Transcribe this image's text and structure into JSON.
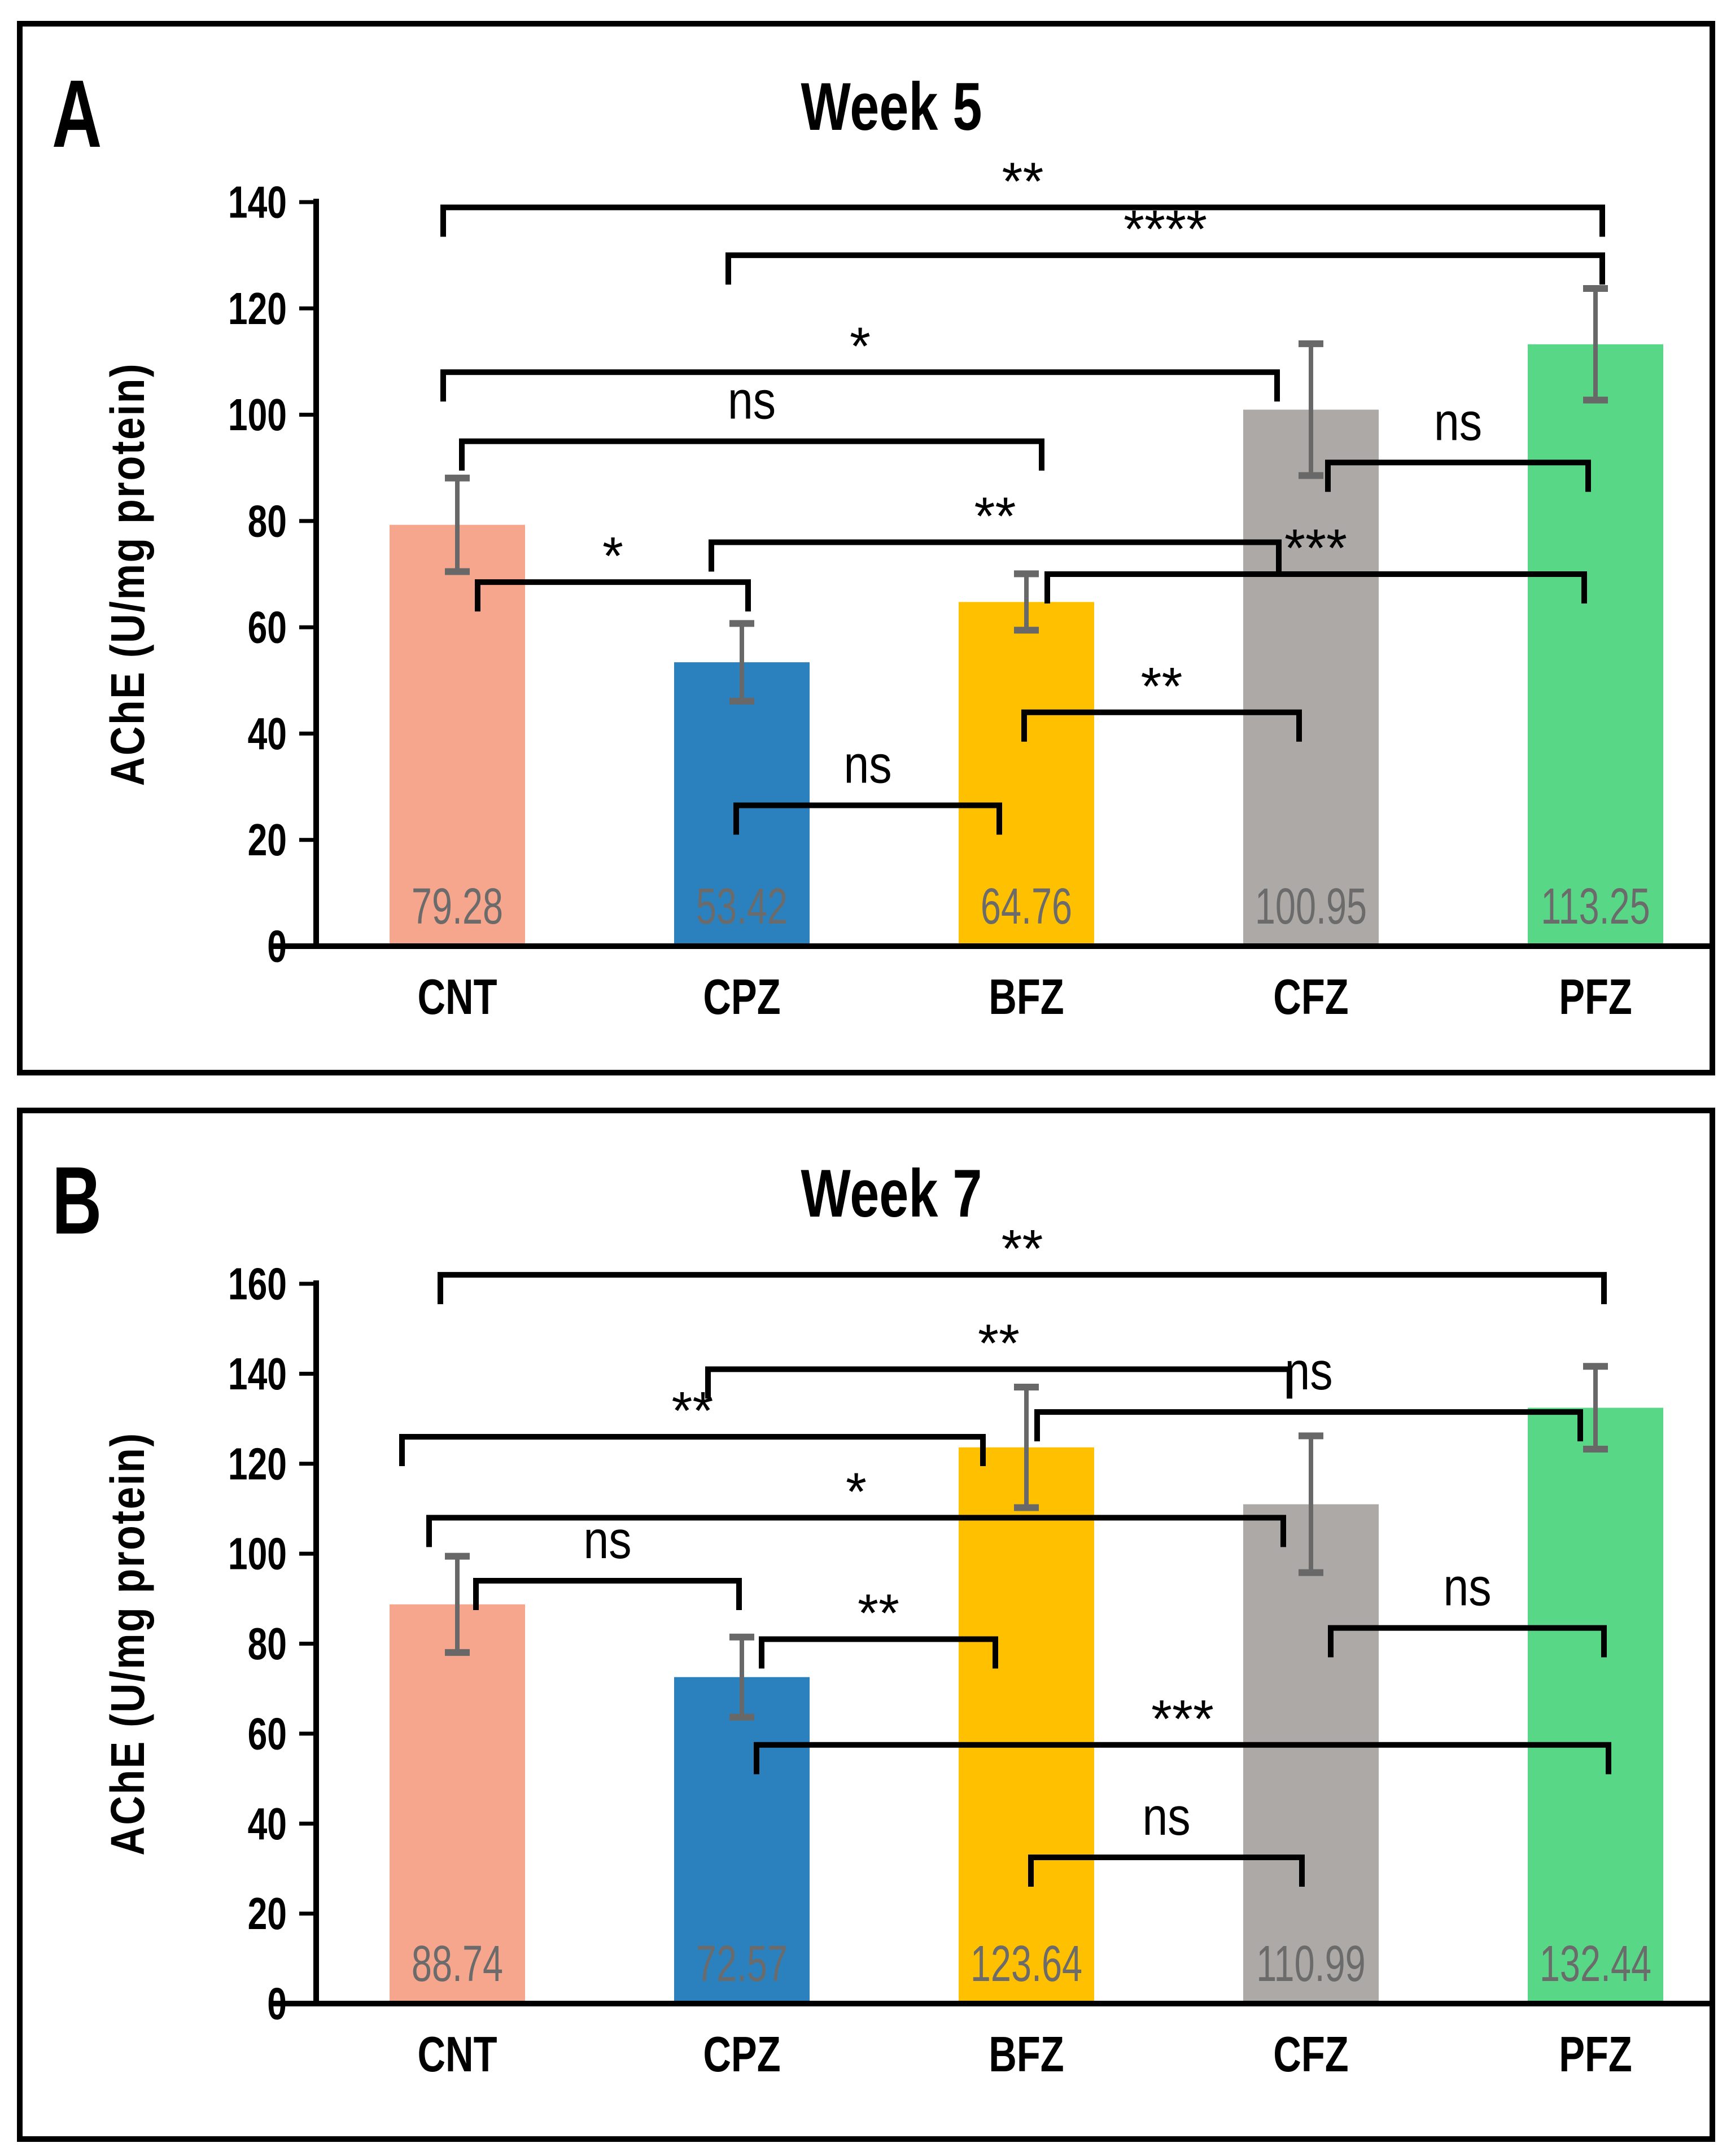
{
  "figure": {
    "description": "Two-panel bar chart figure comparing AChE activity across treatment groups",
    "background": "#ffffff",
    "frame_color": "#000000"
  },
  "chart_data": [
    {
      "type": "bar",
      "panel_letter": "A",
      "title": "Week 5",
      "xlabel": "",
      "ylabel": "AChE (U/mg protein)",
      "ylim": [
        0,
        140
      ],
      "ytick_step": 20,
      "yticks": [
        0,
        20,
        40,
        60,
        80,
        100,
        120,
        140
      ],
      "grid": false,
      "legend": "none",
      "categories": [
        "CNT",
        "CPZ",
        "BFZ",
        "CFZ",
        "PFZ"
      ],
      "values": [
        79.28,
        53.42,
        64.76,
        100.95,
        113.25
      ],
      "value_labels": [
        "79.28",
        "53.42",
        "64.76",
        "100.95",
        "113.25"
      ],
      "errors": [
        8.8,
        7.3,
        5.3,
        12.4,
        10.5
      ],
      "bar_colors": [
        "#F6A68C",
        "#2B81BE",
        "#FFC000",
        "#ADA9A6",
        "#58D886"
      ],
      "error_bar_color": "#686868",
      "value_label_color": "#6b6b6b",
      "significance_brackets": [
        {
          "from": "CNT",
          "to": "PFZ",
          "label": "**",
          "y": 139,
          "dx1": -25,
          "dx2": 12
        },
        {
          "from": "CPZ",
          "to": "PFZ",
          "label": "****",
          "y": 130,
          "dx1": -24,
          "dx2": 12
        },
        {
          "from": "CNT",
          "to": "CFZ",
          "label": "*",
          "y": 108,
          "dx1": -25,
          "dx2": -60
        },
        {
          "from": "CNT",
          "to": "BFZ",
          "label": "ns",
          "y": 95,
          "dx1": 8,
          "dx2": 27
        },
        {
          "from": "CPZ",
          "to": "CFZ",
          "label": "**",
          "y": 76,
          "dx1": -54,
          "dx2": -57
        },
        {
          "from": "CNT",
          "to": "CPZ",
          "label": "*",
          "y": 68.5,
          "dx1": 36,
          "dx2": 11
        },
        {
          "from": "BFZ",
          "to": "PFZ",
          "label": "***",
          "y": 70,
          "dx1": 37,
          "dx2": -20
        },
        {
          "from": "CFZ",
          "to": "PFZ",
          "label": "ns",
          "y": 91,
          "dx1": 30,
          "dx2": -13
        },
        {
          "from": "BFZ",
          "to": "CFZ",
          "label": "**",
          "y": 44,
          "dx1": -4,
          "dx2": -21
        },
        {
          "from": "CPZ",
          "to": "BFZ",
          "label": "ns",
          "y": 26.5,
          "dx1": -10,
          "dx2": -48
        }
      ]
    },
    {
      "type": "bar",
      "panel_letter": "B",
      "title": "Week 7",
      "xlabel": "",
      "ylabel": "AChE (U/mg protein)",
      "ylim": [
        0,
        160
      ],
      "ytick_step": 20,
      "yticks": [
        0,
        20,
        40,
        60,
        80,
        100,
        120,
        140,
        160
      ],
      "grid": false,
      "legend": "none",
      "categories": [
        "CNT",
        "CPZ",
        "BFZ",
        "CFZ",
        "PFZ"
      ],
      "values": [
        88.74,
        72.57,
        123.64,
        110.99,
        132.44
      ],
      "value_labels": [
        "88.74",
        "72.57",
        "123.64",
        "110.99",
        "132.44"
      ],
      "errors": [
        10.7,
        8.9,
        13.4,
        15.2,
        9.2
      ],
      "bar_colors": [
        "#F6A68C",
        "#2B81BE",
        "#FFC000",
        "#ADA9A6",
        "#58D886"
      ],
      "error_bar_color": "#686868",
      "value_label_color": "#6b6b6b",
      "significance_brackets": [
        {
          "from": "CNT",
          "to": "PFZ",
          "label": "**",
          "y": 162,
          "dx1": -30,
          "dx2": 15
        },
        {
          "from": "CPZ",
          "to": "CFZ",
          "label": "**",
          "y": 141,
          "dx1": -60,
          "dx2": -38
        },
        {
          "from": "BFZ",
          "to": "PFZ",
          "label": "ns",
          "y": 131.5,
          "dx1": 19,
          "dx2": -27
        },
        {
          "from": "CNT",
          "to": "BFZ",
          "label": "**",
          "y": 126,
          "dx1": -98,
          "dx2": -77
        },
        {
          "from": "CNT",
          "to": "CFZ",
          "label": "*",
          "y": 108,
          "dx1": -50,
          "dx2": -49
        },
        {
          "from": "CNT",
          "to": "CPZ",
          "label": "ns",
          "y": 94,
          "dx1": 33,
          "dx2": -5
        },
        {
          "from": "CPZ",
          "to": "BFZ",
          "label": "**",
          "y": 81,
          "dx1": 35,
          "dx2": -55
        },
        {
          "from": "CFZ",
          "to": "PFZ",
          "label": "ns",
          "y": 83.5,
          "dx1": 35,
          "dx2": 15
        },
        {
          "from": "CPZ",
          "to": "PFZ",
          "label": "***",
          "y": 57.5,
          "dx1": 26,
          "dx2": 23
        },
        {
          "from": "BFZ",
          "to": "CFZ",
          "label": "ns",
          "y": 32.5,
          "dx1": 8,
          "dx2": -16
        }
      ]
    }
  ]
}
